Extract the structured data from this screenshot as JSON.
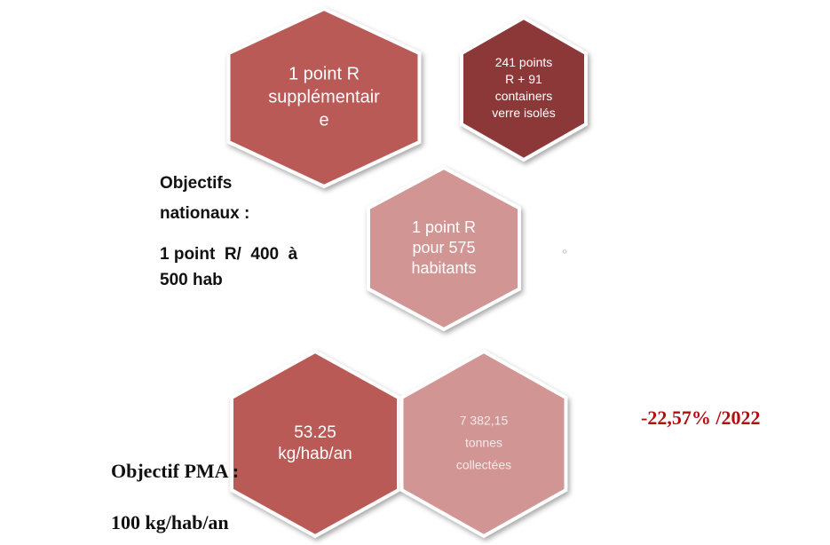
{
  "hexagons": [
    {
      "lines": [
        "1 point  R",
        "supplémentair",
        "e"
      ]
    },
    {
      "lines": [
        "241 points",
        "R + 91",
        "containers",
        "verre isolés"
      ]
    },
    {
      "lines": [
        "1 point R",
        "pour 575",
        "habitants"
      ]
    },
    {
      "lines": [
        "53.25",
        "kg/hab/an"
      ]
    },
    {
      "lines": [
        "7 382,15",
        "tonnes",
        "collectées"
      ]
    }
  ],
  "national_objective": {
    "lines": [
      "Objectifs",
      "nationaux :",
      "1 point  R/  400  à",
      "500 hab"
    ]
  },
  "degree_mark": "°",
  "trend": "-22,57% /2022",
  "pma_objective": {
    "lines": [
      "Objectif PMA :",
      "100 kg/hab/an"
    ]
  }
}
